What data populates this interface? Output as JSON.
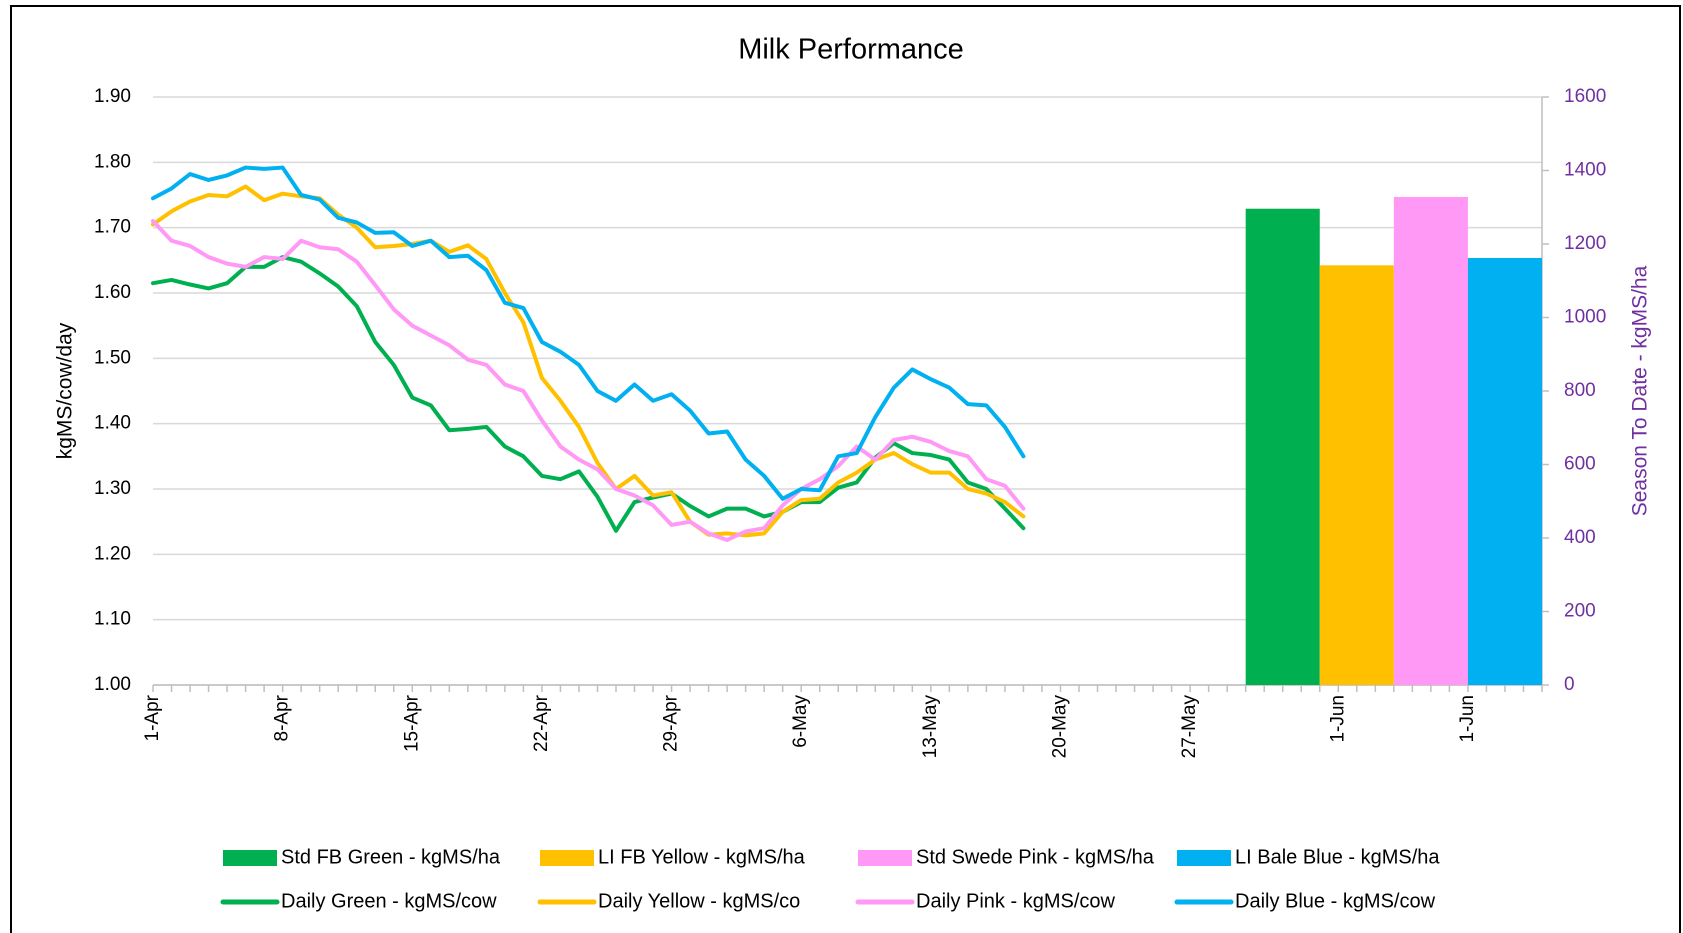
{
  "chart_data": {
    "type": "combo",
    "title": "Milk Performance",
    "y_label": "kgMS/cow/day",
    "y2_label": "Season To Date - kgMS/ha",
    "categories": [
      "1-Apr",
      null,
      null,
      null,
      null,
      null,
      null,
      "8-Apr",
      null,
      null,
      null,
      null,
      null,
      null,
      "15-Apr",
      null,
      null,
      null,
      null,
      null,
      null,
      "22-Apr",
      null,
      null,
      null,
      null,
      null,
      null,
      "29-Apr",
      null,
      null,
      null,
      null,
      null,
      null,
      "6-May",
      null,
      null,
      null,
      null,
      null,
      null,
      "13-May",
      null,
      null,
      null,
      null,
      null,
      null,
      "20-May",
      null,
      null,
      null,
      null,
      null,
      null,
      "27-May",
      null,
      null,
      null,
      null,
      null,
      null,
      null,
      "1-Jun",
      null,
      null,
      null,
      null,
      null,
      null,
      "1-Jun",
      null,
      null,
      null,
      null
    ],
    "ylim": [
      1.0,
      1.9
    ],
    "yticks": [
      {
        "value": 1.0,
        "label": "1.00"
      },
      {
        "value": 1.1,
        "label": "1.10"
      },
      {
        "value": 1.2,
        "label": "1.20"
      },
      {
        "value": 1.3,
        "label": "1.30"
      },
      {
        "value": 1.4,
        "label": "1.40"
      },
      {
        "value": 1.5,
        "label": "1.50"
      },
      {
        "value": 1.6,
        "label": "1.60"
      },
      {
        "value": 1.7,
        "label": "1.70"
      },
      {
        "value": 1.8,
        "label": "1.80"
      },
      {
        "value": 1.9,
        "label": "1.90"
      }
    ],
    "y2lim": [
      0,
      1600
    ],
    "y2ticks": [
      0,
      200,
      400,
      600,
      800,
      1000,
      1200,
      1400,
      1600
    ],
    "grid": true,
    "series": [
      {
        "name": "Std FB Green - kgMS/ha",
        "type": "bar",
        "axis": "y2",
        "color": "#00b050",
        "values": [
          null,
          null,
          null,
          null,
          null,
          null,
          null,
          null,
          null,
          null,
          null,
          null,
          null,
          null,
          null,
          null,
          null,
          null,
          null,
          null,
          null,
          null,
          null,
          null,
          null,
          null,
          null,
          null,
          null,
          null,
          null,
          null,
          null,
          null,
          null,
          null,
          null,
          null,
          null,
          null,
          null,
          null,
          null,
          null,
          null,
          null,
          null,
          null,
          null,
          null,
          null,
          null,
          null,
          null,
          null,
          null,
          null,
          null,
          null,
          null,
          null,
          1296,
          null,
          null,
          null,
          null,
          null,
          null,
          null,
          null,
          null,
          null,
          null,
          null,
          null,
          null
        ]
      },
      {
        "name": "LI FB Yellow - kgMS/ha",
        "type": "bar",
        "axis": "y2",
        "color": "#ffc000",
        "values": [
          null,
          null,
          null,
          null,
          null,
          null,
          null,
          null,
          null,
          null,
          null,
          null,
          null,
          null,
          null,
          null,
          null,
          null,
          null,
          null,
          null,
          null,
          null,
          null,
          null,
          null,
          null,
          null,
          null,
          null,
          null,
          null,
          null,
          null,
          null,
          null,
          null,
          null,
          null,
          null,
          null,
          null,
          null,
          null,
          null,
          null,
          null,
          null,
          null,
          null,
          null,
          null,
          null,
          null,
          null,
          null,
          null,
          null,
          null,
          null,
          null,
          null,
          null,
          null,
          null,
          1142,
          null,
          null,
          null,
          null,
          null,
          null,
          null,
          null,
          null,
          null
        ]
      },
      {
        "name": "Std Swede Pink - kgMS/ha",
        "type": "bar",
        "axis": "y2",
        "color": "#ff99f5",
        "values": [
          null,
          null,
          null,
          null,
          null,
          null,
          null,
          null,
          null,
          null,
          null,
          null,
          null,
          null,
          null,
          null,
          null,
          null,
          null,
          null,
          null,
          null,
          null,
          null,
          null,
          null,
          null,
          null,
          null,
          null,
          null,
          null,
          null,
          null,
          null,
          null,
          null,
          null,
          null,
          null,
          null,
          null,
          null,
          null,
          null,
          null,
          null,
          null,
          null,
          null,
          null,
          null,
          null,
          null,
          null,
          null,
          null,
          null,
          null,
          null,
          null,
          null,
          null,
          null,
          null,
          null,
          null,
          null,
          null,
          1328,
          null,
          null,
          null,
          null,
          null,
          null
        ]
      },
      {
        "name": "LI Bale Blue - kgMS/ha",
        "type": "bar",
        "axis": "y2",
        "color": "#00b0f0",
        "values": [
          null,
          null,
          null,
          null,
          null,
          null,
          null,
          null,
          null,
          null,
          null,
          null,
          null,
          null,
          null,
          null,
          null,
          null,
          null,
          null,
          null,
          null,
          null,
          null,
          null,
          null,
          null,
          null,
          null,
          null,
          null,
          null,
          null,
          null,
          null,
          null,
          null,
          null,
          null,
          null,
          null,
          null,
          null,
          null,
          null,
          null,
          null,
          null,
          null,
          null,
          null,
          null,
          null,
          null,
          null,
          null,
          null,
          null,
          null,
          null,
          null,
          null,
          null,
          null,
          null,
          null,
          null,
          null,
          null,
          null,
          null,
          null,
          null,
          1162,
          null,
          null
        ]
      },
      {
        "name": "Daily Green - kgMS/cow",
        "type": "line",
        "color": "#00b050",
        "values": [
          1.615,
          1.62,
          1.613,
          1.607,
          1.615,
          1.64,
          1.64,
          1.655,
          1.648,
          1.63,
          1.61,
          1.58,
          1.525,
          1.49,
          1.44,
          1.428,
          1.39,
          1.392,
          1.395,
          1.365,
          1.35,
          1.32,
          1.315,
          1.327,
          1.288,
          1.236,
          1.28,
          1.287,
          1.293,
          1.274,
          1.258,
          1.27,
          1.27,
          1.258,
          1.265,
          1.28,
          1.28,
          1.302,
          1.31,
          1.348,
          1.37,
          1.355,
          1.352,
          1.345,
          1.31,
          1.3,
          1.27,
          1.24,
          null,
          null,
          null,
          null,
          null,
          null,
          null,
          null,
          null,
          null,
          null,
          null,
          null,
          null,
          null,
          null,
          null,
          null,
          null,
          null,
          null,
          null,
          null,
          null,
          null,
          null,
          null,
          null
        ]
      },
      {
        "name": "Daily Yellow - kgMS/co",
        "type": "line",
        "color": "#ffc000",
        "values": [
          1.705,
          1.725,
          1.74,
          1.75,
          1.748,
          1.763,
          1.742,
          1.752,
          1.748,
          1.745,
          1.72,
          1.7,
          1.67,
          1.672,
          1.675,
          1.68,
          1.663,
          1.673,
          1.652,
          1.6,
          1.555,
          1.47,
          1.435,
          1.395,
          1.34,
          1.3,
          1.32,
          1.29,
          1.295,
          1.25,
          1.23,
          1.232,
          1.229,
          1.232,
          1.265,
          1.283,
          1.285,
          1.31,
          1.325,
          1.345,
          1.355,
          1.338,
          1.325,
          1.325,
          1.3,
          1.293,
          1.28,
          1.258,
          null,
          null,
          null,
          null,
          null,
          null,
          null,
          null,
          null,
          null,
          null,
          null,
          null,
          null,
          null,
          null,
          null,
          null,
          null,
          null,
          null,
          null,
          null,
          null,
          null,
          null,
          null,
          null
        ]
      },
      {
        "name": "Daily Pink - kgMS/cow",
        "type": "line",
        "color": "#ff99f5",
        "values": [
          1.71,
          1.68,
          1.672,
          1.655,
          1.645,
          1.64,
          1.655,
          1.652,
          1.68,
          1.67,
          1.667,
          1.648,
          1.612,
          1.575,
          1.55,
          1.535,
          1.52,
          1.498,
          1.49,
          1.46,
          1.45,
          1.405,
          1.365,
          1.345,
          1.33,
          1.3,
          1.29,
          1.275,
          1.245,
          1.25,
          1.232,
          1.222,
          1.235,
          1.24,
          1.275,
          1.3,
          1.315,
          1.335,
          1.365,
          1.345,
          1.375,
          1.38,
          1.372,
          1.358,
          1.35,
          1.315,
          1.305,
          1.27,
          null,
          null,
          null,
          null,
          null,
          null,
          null,
          null,
          null,
          null,
          null,
          null,
          null,
          null,
          null,
          null,
          null,
          null,
          null,
          null,
          null,
          null,
          null,
          null,
          null,
          null,
          null,
          null
        ]
      },
      {
        "name": "Daily Blue - kgMS/cow",
        "type": "line",
        "color": "#00b0f0",
        "values": [
          1.745,
          1.76,
          1.782,
          1.773,
          1.78,
          1.792,
          1.79,
          1.792,
          1.75,
          1.743,
          1.715,
          1.708,
          1.692,
          1.693,
          1.672,
          1.68,
          1.655,
          1.657,
          1.635,
          1.585,
          1.577,
          1.525,
          1.51,
          1.49,
          1.45,
          1.435,
          1.46,
          1.435,
          1.445,
          1.42,
          1.385,
          1.388,
          1.345,
          1.32,
          1.285,
          1.3,
          1.298,
          1.35,
          1.355,
          1.41,
          1.455,
          1.483,
          1.468,
          1.455,
          1.43,
          1.428,
          1.395,
          1.35,
          null,
          null,
          null,
          null,
          null,
          null,
          null,
          null,
          null,
          null,
          null,
          null,
          null,
          null,
          null,
          null,
          null,
          null,
          null,
          null,
          null,
          null,
          null,
          null,
          null,
          null,
          null,
          null
        ]
      }
    ]
  }
}
